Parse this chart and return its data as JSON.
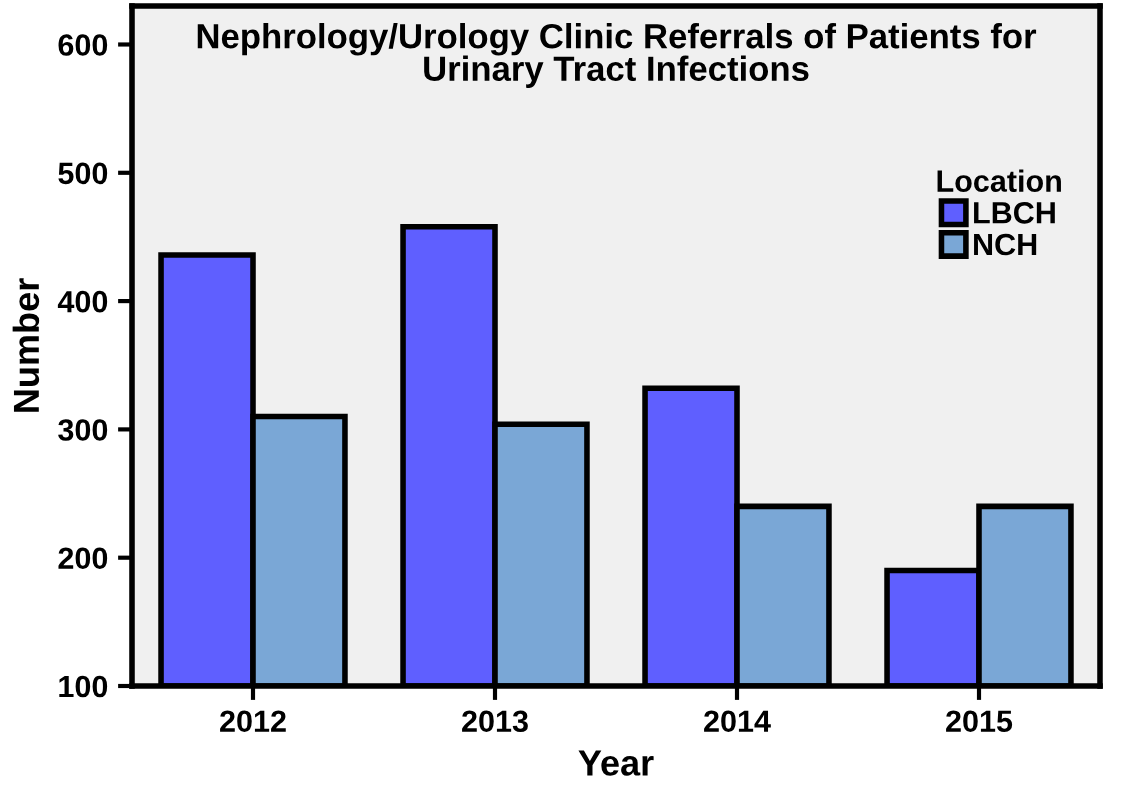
{
  "chart_data": {
    "type": "bar",
    "title": "Nephrology/Urology Clinic Referrals of Patients for\nUrinary Tract Infections",
    "xlabel": "Year",
    "ylabel": "Number",
    "legend_title": "Location",
    "categories": [
      "2012",
      "2013",
      "2014",
      "2015"
    ],
    "series": [
      {
        "name": "LBCH",
        "color": "#5f5fff",
        "values": [
          436,
          458,
          332,
          190
        ]
      },
      {
        "name": "NCH",
        "color": "#7aa7d6",
        "values": [
          310,
          304,
          240,
          240
        ]
      }
    ],
    "ylim": [
      100,
      630
    ],
    "yticks": [
      100,
      200,
      300,
      400,
      500,
      600
    ],
    "grid": false,
    "legend": "top right"
  }
}
